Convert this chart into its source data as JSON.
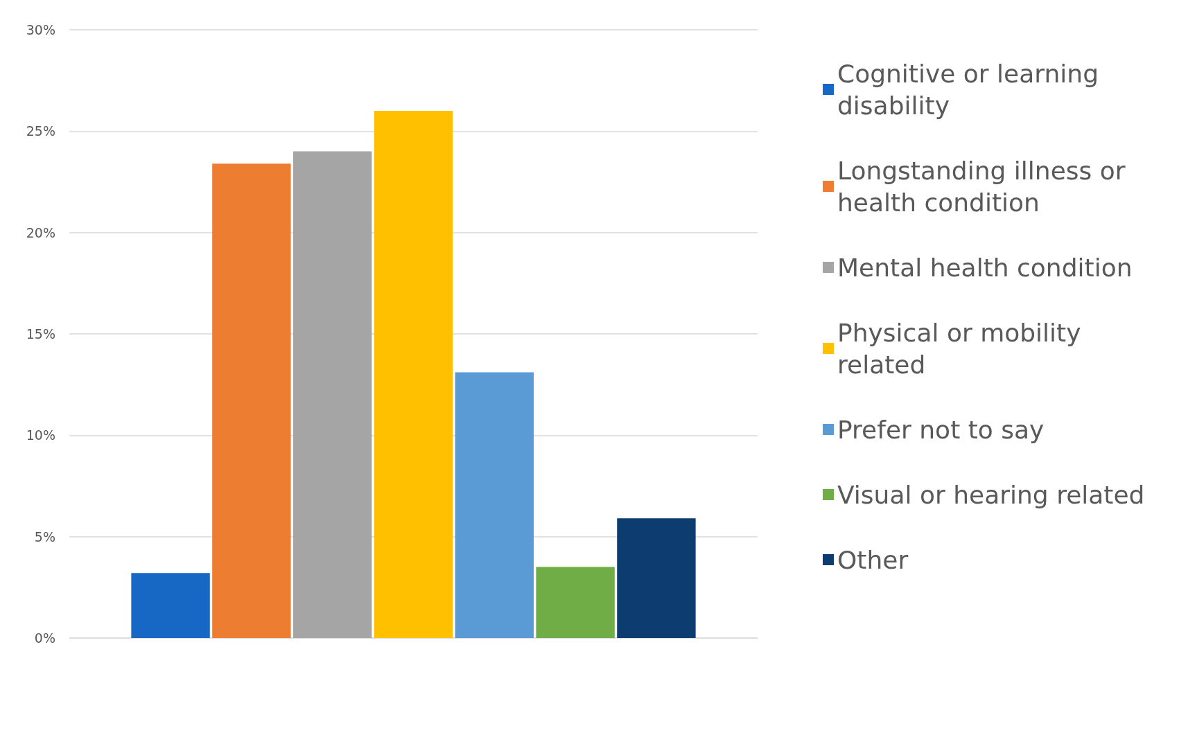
{
  "chart_data": {
    "type": "bar",
    "categories": [
      null
    ],
    "series": [
      {
        "name": "Cognitive or learning disability",
        "color": "#1668c4",
        "values": [
          3.2
        ]
      },
      {
        "name": "Longstanding illness or health condition",
        "color": "#ed7d31",
        "values": [
          23.4
        ]
      },
      {
        "name": "Mental health condition",
        "color": "#a5a5a5",
        "values": [
          24.0
        ]
      },
      {
        "name": "Physical or mobility related",
        "color": "#ffc000",
        "values": [
          26.0
        ]
      },
      {
        "name": "Prefer not to say",
        "color": "#5b9bd5",
        "values": [
          13.1
        ]
      },
      {
        "name": "Visual or hearing related",
        "color": "#70ad47",
        "values": [
          3.5
        ]
      },
      {
        "name": "Other",
        "color": "#0c3c70",
        "values": [
          5.9
        ]
      }
    ],
    "ylim": [
      0,
      30
    ],
    "yticks": [
      {
        "value": 0,
        "label": "0%"
      },
      {
        "value": 5,
        "label": "5%"
      },
      {
        "value": 10,
        "label": "10%"
      },
      {
        "value": 15,
        "label": "15%"
      },
      {
        "value": 20,
        "label": "20%"
      },
      {
        "value": 25,
        "label": "25%"
      },
      {
        "value": 30,
        "label": "30%"
      }
    ],
    "grid": "y",
    "legend": "right"
  }
}
